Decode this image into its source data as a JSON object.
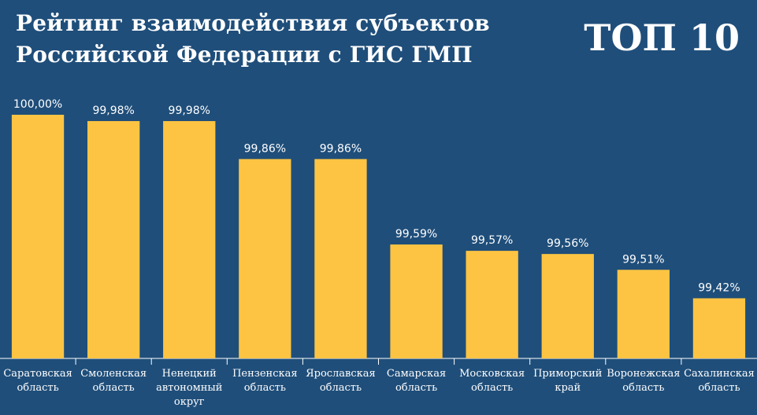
{
  "header": {
    "title_line1": "Рейтинг взаимодействия субъектов",
    "title_line2": "Российской Федерации с ГИС ГМП",
    "badge": "ТОП 10"
  },
  "colors": {
    "background": "#1f4e7a",
    "bar": "#fdc443",
    "text": "#ffffff"
  },
  "chart_data": {
    "type": "bar",
    "title": "Рейтинг взаимодействия субъектов Российской Федерации с ГИС ГМП",
    "categories": [
      [
        "Саратовская",
        "область"
      ],
      [
        "Смоленская",
        "область"
      ],
      [
        "Ненецкий",
        "автономный",
        "округ"
      ],
      [
        "Пензенская",
        "область"
      ],
      [
        "Ярославская",
        "область"
      ],
      [
        "Самарская",
        "область"
      ],
      [
        "Московская",
        "область"
      ],
      [
        "Приморский",
        "край"
      ],
      [
        "Воронежская",
        "область"
      ],
      [
        "Сахалинская",
        "область"
      ]
    ],
    "values": [
      100.0,
      99.98,
      99.98,
      99.86,
      99.86,
      99.59,
      99.57,
      99.56,
      99.51,
      99.42
    ],
    "value_labels": [
      "100,00%",
      "99,98%",
      "99,98%",
      "99,86%",
      "99,86%",
      "99,59%",
      "99,57%",
      "99,56%",
      "99,51%",
      "99,42%"
    ],
    "grid": false,
    "legend": "none"
  }
}
